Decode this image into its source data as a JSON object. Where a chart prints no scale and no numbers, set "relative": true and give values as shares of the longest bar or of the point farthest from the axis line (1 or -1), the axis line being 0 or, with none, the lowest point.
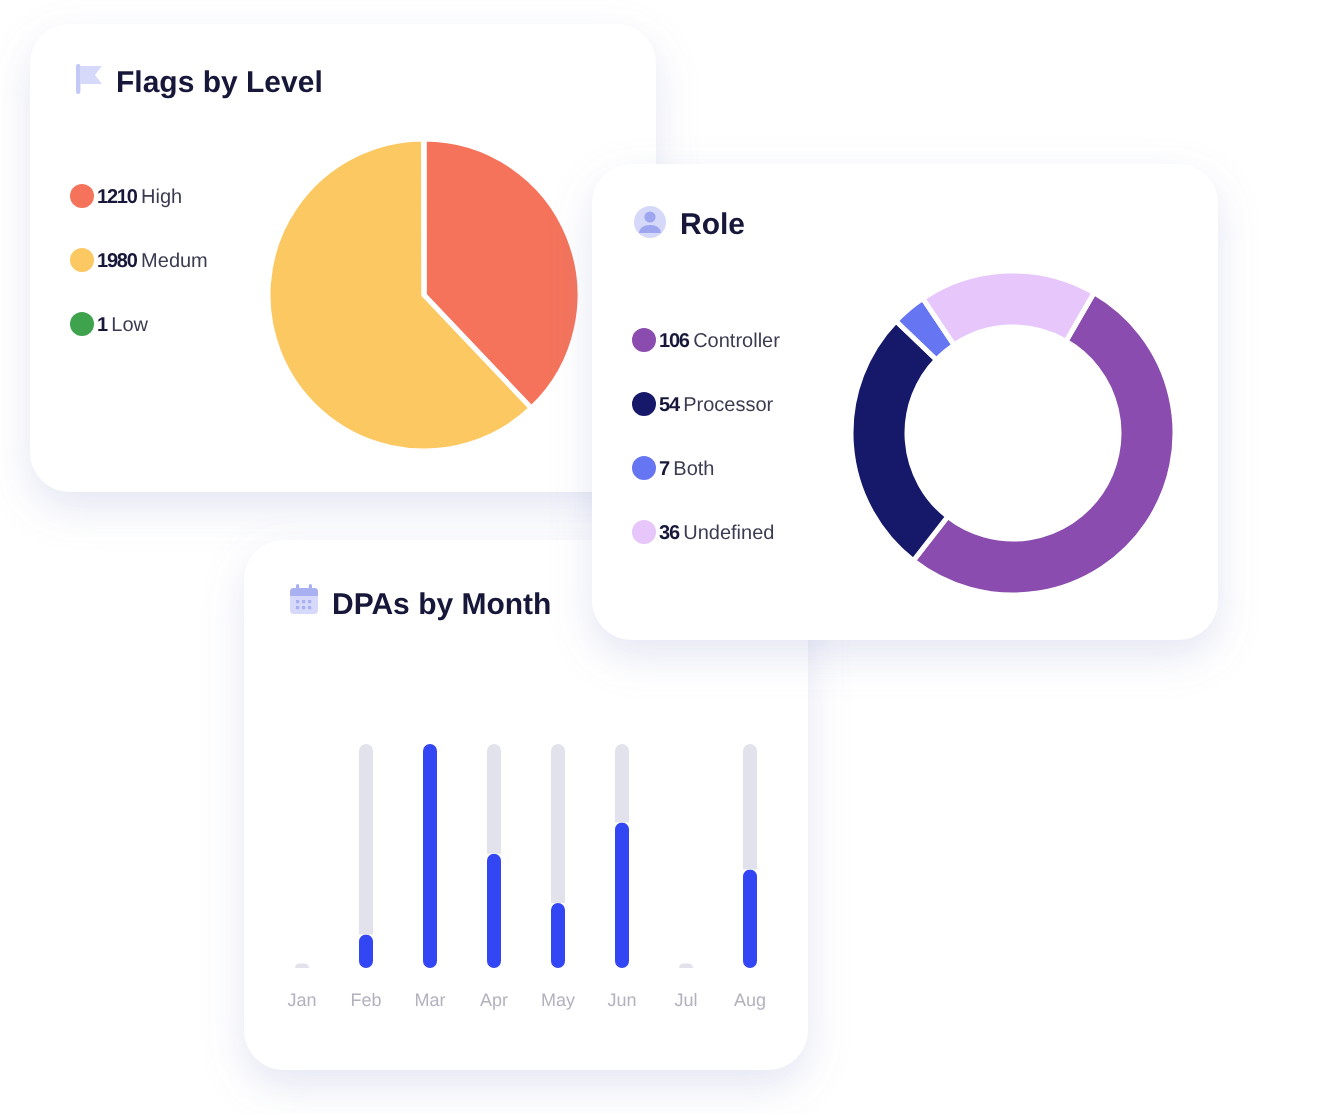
{
  "chart_data": [
    {
      "type": "pie",
      "title": "Flags by Level",
      "categories": [
        "High",
        "Medum",
        "Low"
      ],
      "values": [
        1210,
        1980,
        1
      ],
      "colors": [
        "#f4735a",
        "#fcc862",
        "#3fa34d"
      ],
      "legend": "left",
      "data_labels": true
    },
    {
      "type": "donut",
      "title": "Role",
      "categories": [
        "Controller",
        "Processor",
        "Both",
        "Undefined"
      ],
      "values": [
        106,
        54,
        7,
        36
      ],
      "colors": [
        "#8a4caf",
        "#16196a",
        "#6675f2",
        "#e6c6fb"
      ],
      "legend": "left",
      "data_labels": true
    },
    {
      "type": "bar",
      "title": "DPAs by Month",
      "categories": [
        "Jan",
        "Feb",
        "Mar",
        "Apr",
        "May",
        "Jun",
        "Jul",
        "Aug"
      ],
      "stacked": true,
      "relative": true,
      "series": [
        {
          "color": "#3346f4",
          "values": [
            0,
            0.15,
            1,
            0.51,
            0.29,
            0.65,
            0,
            0.44
          ]
        },
        {
          "color": "#e2e2ec",
          "values": [
            0.02,
            0.85,
            0,
            0.49,
            0.71,
            0.35,
            0.02,
            0.56
          ]
        }
      ]
    }
  ]
}
